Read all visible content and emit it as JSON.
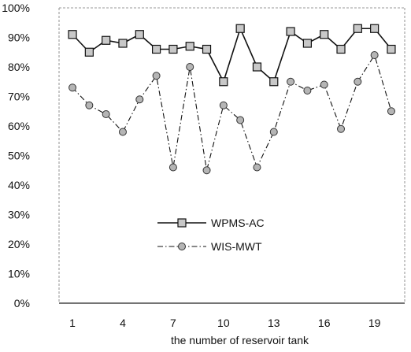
{
  "chart_data": {
    "type": "line",
    "title": "",
    "xlabel": "the number of reservoir tank",
    "ylabel": "",
    "x": [
      1,
      2,
      3,
      4,
      5,
      6,
      7,
      8,
      9,
      10,
      11,
      12,
      13,
      14,
      15,
      16,
      17,
      18,
      19,
      20
    ],
    "x_ticks": [
      1,
      4,
      7,
      10,
      13,
      16,
      19
    ],
    "xlim": [
      0.2,
      20.8
    ],
    "ylim": [
      0,
      100
    ],
    "y_ticks": [
      0,
      10,
      20,
      30,
      40,
      50,
      60,
      70,
      80,
      90,
      100
    ],
    "y_tick_labels": [
      "0%",
      "10%",
      "20%",
      "30%",
      "40%",
      "50%",
      "60%",
      "70%",
      "80%",
      "90%",
      "100%"
    ],
    "grid": false,
    "legend_position": "center-left",
    "series": [
      {
        "name": "WPMS-AC",
        "marker": "square",
        "line_style": "solid",
        "values": [
          91,
          85,
          89,
          88,
          91,
          86,
          86,
          87,
          86,
          75,
          93,
          80,
          75,
          92,
          88,
          91,
          86,
          93,
          93,
          86
        ]
      },
      {
        "name": "WIS-MWT",
        "marker": "circle",
        "line_style": "dash-dot",
        "values": [
          73,
          67,
          64,
          58,
          69,
          77,
          46,
          80,
          45,
          67,
          62,
          46,
          58,
          75,
          72,
          74,
          59,
          75,
          84,
          65
        ]
      }
    ]
  }
}
